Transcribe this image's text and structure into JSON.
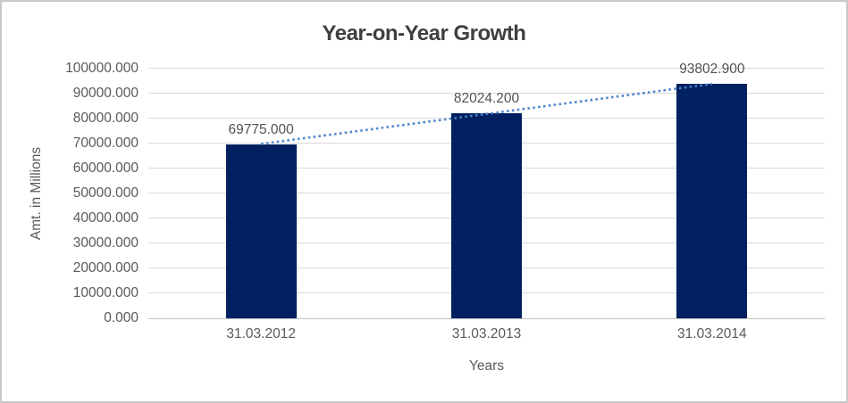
{
  "chart_data": {
    "type": "bar",
    "title": "Year-on-Year Growth",
    "xlabel": "Years",
    "ylabel": "Amt. in Millions",
    "categories": [
      "31.03.2012",
      "31.03.2013",
      "31.03.2014"
    ],
    "values": [
      69775.0,
      82024.2,
      93802.9
    ],
    "bar_labels": [
      "69775.000",
      "82024.200",
      "93802.900"
    ],
    "y_ticks": [
      "0.000",
      "10000.000",
      "20000.000",
      "30000.000",
      "40000.000",
      "50000.000",
      "60000.000",
      "70000.000",
      "80000.000",
      "90000.000",
      "100000.000"
    ],
    "ylim": [
      0,
      100000
    ],
    "grid": "horizontal",
    "legend": "none",
    "trendline": {
      "type": "linear",
      "style": "dotted"
    },
    "colors": {
      "bar": "#002060",
      "trendline": "#4A85CC",
      "gridline": "#D9D9D9",
      "axis_line": "#BFBFBF",
      "title_text": "#3F3F3F",
      "axis_text": "#595959",
      "label_text": "#525252",
      "border": "#C9C9C9",
      "background": "#FFFFFF"
    }
  }
}
